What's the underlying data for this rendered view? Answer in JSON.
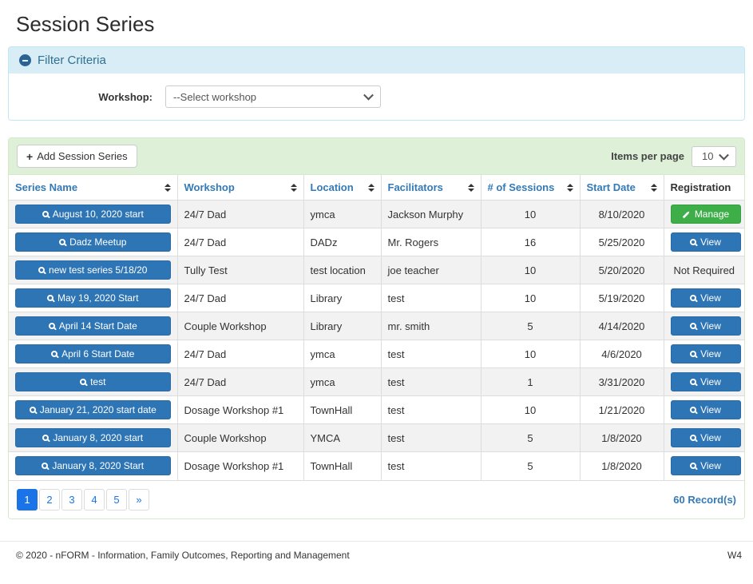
{
  "page": {
    "title": "Session Series",
    "footer": {
      "copyright": "© 2020 - nFORM - Information, Family Outcomes, Reporting and Management",
      "version": "W4"
    }
  },
  "filter": {
    "title": "Filter Criteria",
    "collapse_icon": "minus-circle-icon",
    "workshop_label": "Workshop:",
    "workshop_selected": "--Select workshop"
  },
  "toolbar": {
    "add_button": "Add Session Series",
    "add_icon": "plus-icon",
    "items_per_page_label": "Items per page",
    "items_per_page_value": "10"
  },
  "table": {
    "headers": [
      {
        "key": "series_name",
        "label": "Series Name",
        "sortable": true
      },
      {
        "key": "workshop",
        "label": "Workshop",
        "sortable": true
      },
      {
        "key": "location",
        "label": "Location",
        "sortable": true
      },
      {
        "key": "facilitators",
        "label": "Facilitators",
        "sortable": true
      },
      {
        "key": "sessions",
        "label": "# of Sessions",
        "sortable": true
      },
      {
        "key": "start_date",
        "label": "Start Date",
        "sortable": true
      },
      {
        "key": "registration",
        "label": "Registration",
        "sortable": false
      }
    ],
    "rows": [
      {
        "series_name": "August 10, 2020 start",
        "workshop": "24/7 Dad",
        "location": "ymca",
        "facilitators": "Jackson Murphy",
        "sessions": "10",
        "start_date": "8/10/2020",
        "registration": {
          "type": "manage",
          "label": "Manage"
        }
      },
      {
        "series_name": "Dadz Meetup",
        "workshop": "24/7 Dad",
        "location": "DADz",
        "facilitators": "Mr. Rogers",
        "sessions": "16",
        "start_date": "5/25/2020",
        "registration": {
          "type": "view",
          "label": "View"
        }
      },
      {
        "series_name": "new test series 5/18/20",
        "workshop": "Tully Test",
        "location": "test location",
        "facilitators": "joe teacher",
        "sessions": "10",
        "start_date": "5/20/2020",
        "registration": {
          "type": "text",
          "label": "Not Required"
        }
      },
      {
        "series_name": "May 19, 2020 Start",
        "workshop": "24/7 Dad",
        "location": "Library",
        "facilitators": "test",
        "sessions": "10",
        "start_date": "5/19/2020",
        "registration": {
          "type": "view",
          "label": "View"
        }
      },
      {
        "series_name": "April 14 Start Date",
        "workshop": "Couple Workshop",
        "location": "Library",
        "facilitators": "mr. smith",
        "sessions": "5",
        "start_date": "4/14/2020",
        "registration": {
          "type": "view",
          "label": "View"
        }
      },
      {
        "series_name": "April 6 Start Date",
        "workshop": "24/7 Dad",
        "location": "ymca",
        "facilitators": "test",
        "sessions": "10",
        "start_date": "4/6/2020",
        "registration": {
          "type": "view",
          "label": "View"
        }
      },
      {
        "series_name": "test",
        "workshop": "24/7 Dad",
        "location": "ymca",
        "facilitators": "test",
        "sessions": "1",
        "start_date": "3/31/2020",
        "registration": {
          "type": "view",
          "label": "View"
        }
      },
      {
        "series_name": "January 21, 2020 start date",
        "workshop": "Dosage Workshop #1",
        "location": "TownHall",
        "facilitators": "test",
        "sessions": "10",
        "start_date": "1/21/2020",
        "registration": {
          "type": "view",
          "label": "View"
        }
      },
      {
        "series_name": "January 8, 2020 start",
        "workshop": "Couple Workshop",
        "location": "YMCA",
        "facilitators": "test",
        "sessions": "5",
        "start_date": "1/8/2020",
        "registration": {
          "type": "view",
          "label": "View"
        }
      },
      {
        "series_name": "January 8, 2020 Start",
        "workshop": "Dosage Workshop #1",
        "location": "TownHall",
        "facilitators": "test",
        "sessions": "5",
        "start_date": "1/8/2020",
        "registration": {
          "type": "view",
          "label": "View"
        }
      }
    ]
  },
  "pagination": {
    "pages": [
      "1",
      "2",
      "3",
      "4",
      "5",
      "»"
    ],
    "active": "1",
    "records": "60 Record(s)"
  },
  "colors": {
    "primary_blue": "#2e75b5",
    "success_green": "#3eae49",
    "toolbar_green_bg": "#dff0d8",
    "toolbar_green_border": "#d6e9c6",
    "filter_blue_bg": "#d9edf7",
    "filter_blue_border": "#bce8f1",
    "filter_blue_text": "#31708f",
    "header_link_blue": "#337ab7",
    "pagination_active_blue": "#1b73e8",
    "stripe_gray": "#f2f2f2"
  }
}
